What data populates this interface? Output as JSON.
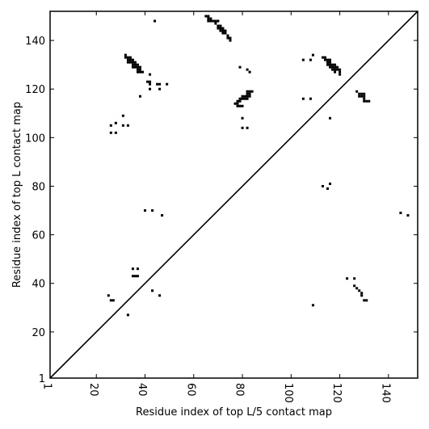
{
  "chart_data": {
    "type": "scatter",
    "xlabel": "Residue index of top L/5 contact map",
    "ylabel": "Residue index of top L contact map",
    "xlim": [
      1,
      152
    ],
    "ylim": [
      1,
      152
    ],
    "xticks": [
      1,
      20,
      40,
      60,
      80,
      100,
      120,
      140
    ],
    "xtick_labels": [
      "1",
      "20",
      "40",
      "60",
      "80",
      "100",
      "120",
      "140"
    ],
    "yticks": [
      1,
      20,
      40,
      60,
      80,
      100,
      120,
      140
    ],
    "ytick_labels": [
      "1",
      "20",
      "40",
      "60",
      "80",
      "100",
      "120",
      "140"
    ],
    "diagonal": true,
    "marker_color": "#000000",
    "points": [
      [
        65,
        150
      ],
      [
        66,
        150
      ],
      [
        66,
        149
      ],
      [
        67,
        149
      ],
      [
        66,
        148
      ],
      [
        67,
        148
      ],
      [
        68,
        148
      ],
      [
        69,
        148
      ],
      [
        70,
        148
      ],
      [
        69,
        147
      ],
      [
        70,
        146
      ],
      [
        71,
        146
      ],
      [
        70,
        145
      ],
      [
        71,
        145
      ],
      [
        72,
        145
      ],
      [
        71,
        144
      ],
      [
        72,
        144
      ],
      [
        73,
        144
      ],
      [
        72,
        143
      ],
      [
        73,
        143
      ],
      [
        74,
        142
      ],
      [
        74,
        141
      ],
      [
        75,
        141
      ],
      [
        75,
        140
      ],
      [
        44,
        148
      ],
      [
        32,
        134
      ],
      [
        32,
        133
      ],
      [
        33,
        133
      ],
      [
        34,
        133
      ],
      [
        33,
        132
      ],
      [
        34,
        132
      ],
      [
        35,
        132
      ],
      [
        33,
        131
      ],
      [
        34,
        131
      ],
      [
        35,
        131
      ],
      [
        36,
        131
      ],
      [
        35,
        130
      ],
      [
        36,
        130
      ],
      [
        37,
        130
      ],
      [
        35,
        129
      ],
      [
        36,
        129
      ],
      [
        37,
        129
      ],
      [
        38,
        129
      ],
      [
        37,
        128
      ],
      [
        38,
        128
      ],
      [
        37,
        127
      ],
      [
        38,
        127
      ],
      [
        39,
        127
      ],
      [
        42,
        126
      ],
      [
        41,
        123
      ],
      [
        42,
        123
      ],
      [
        42,
        122
      ],
      [
        45,
        122
      ],
      [
        46,
        122
      ],
      [
        49,
        122
      ],
      [
        42,
        120
      ],
      [
        46,
        120
      ],
      [
        38,
        117
      ],
      [
        31,
        109
      ],
      [
        28,
        106
      ],
      [
        26,
        105
      ],
      [
        31,
        105
      ],
      [
        33,
        105
      ],
      [
        26,
        102
      ],
      [
        28,
        102
      ],
      [
        40,
        70
      ],
      [
        43,
        70
      ],
      [
        47,
        68
      ],
      [
        35,
        46
      ],
      [
        37,
        46
      ],
      [
        35,
        43
      ],
      [
        36,
        43
      ],
      [
        37,
        43
      ],
      [
        43,
        37
      ],
      [
        46,
        35
      ],
      [
        25,
        35
      ],
      [
        26,
        33
      ],
      [
        27,
        33
      ],
      [
        33,
        27
      ],
      [
        79,
        129
      ],
      [
        82,
        128
      ],
      [
        83,
        127
      ],
      [
        82,
        119
      ],
      [
        83,
        119
      ],
      [
        84,
        119
      ],
      [
        82,
        118
      ],
      [
        83,
        118
      ],
      [
        80,
        117
      ],
      [
        81,
        117
      ],
      [
        82,
        117
      ],
      [
        83,
        117
      ],
      [
        79,
        116
      ],
      [
        80,
        116
      ],
      [
        81,
        116
      ],
      [
        82,
        116
      ],
      [
        78,
        115
      ],
      [
        79,
        115
      ],
      [
        77,
        114
      ],
      [
        78,
        114
      ],
      [
        78,
        113
      ],
      [
        79,
        113
      ],
      [
        80,
        113
      ],
      [
        80,
        108
      ],
      [
        80,
        104
      ],
      [
        82,
        104
      ],
      [
        105,
        132
      ],
      [
        108,
        132
      ],
      [
        109,
        134
      ],
      [
        105,
        116
      ],
      [
        108,
        116
      ],
      [
        113,
        133
      ],
      [
        114,
        133
      ],
      [
        114,
        132
      ],
      [
        115,
        132
      ],
      [
        116,
        132
      ],
      [
        115,
        131
      ],
      [
        116,
        131
      ],
      [
        115,
        130
      ],
      [
        116,
        130
      ],
      [
        117,
        130
      ],
      [
        118,
        130
      ],
      [
        116,
        129
      ],
      [
        117,
        129
      ],
      [
        118,
        129
      ],
      [
        119,
        129
      ],
      [
        117,
        128
      ],
      [
        118,
        128
      ],
      [
        119,
        128
      ],
      [
        120,
        128
      ],
      [
        118,
        127
      ],
      [
        120,
        127
      ],
      [
        120,
        126
      ],
      [
        116,
        108
      ],
      [
        113,
        80
      ],
      [
        116,
        81
      ],
      [
        115,
        79
      ],
      [
        127,
        119
      ],
      [
        128,
        118
      ],
      [
        129,
        118
      ],
      [
        130,
        118
      ],
      [
        128,
        117
      ],
      [
        129,
        117
      ],
      [
        130,
        117
      ],
      [
        130,
        116
      ],
      [
        130,
        115
      ],
      [
        131,
        115
      ],
      [
        132,
        115
      ],
      [
        123,
        42
      ],
      [
        126,
        42
      ],
      [
        126,
        39
      ],
      [
        127,
        38
      ],
      [
        128,
        37
      ],
      [
        129,
        36
      ],
      [
        129,
        35
      ],
      [
        130,
        33
      ],
      [
        131,
        33
      ],
      [
        109,
        31
      ],
      [
        145,
        69
      ],
      [
        148,
        68
      ]
    ]
  }
}
